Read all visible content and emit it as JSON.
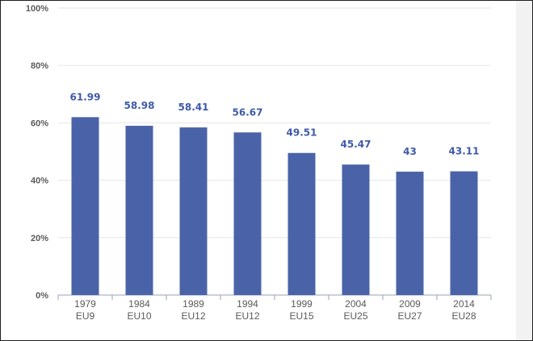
{
  "chart_data": {
    "type": "bar",
    "categories": [
      "1979",
      "1984",
      "1989",
      "1994",
      "1999",
      "2004",
      "2009",
      "2014"
    ],
    "category_sublabels": [
      "EU9",
      "EU10",
      "EU12",
      "EU12",
      "EU15",
      "EU25",
      "EU27",
      "EU28"
    ],
    "values": [
      61.99,
      58.98,
      58.41,
      56.67,
      49.51,
      45.47,
      43,
      43.11
    ],
    "data_labels": [
      "61.99",
      "58.98",
      "58.41",
      "56.67",
      "49.51",
      "45.47",
      "43",
      "43.11"
    ],
    "yticks": [
      "0%",
      "20%",
      "40%",
      "60%",
      "80%",
      "100%"
    ],
    "ytick_values": [
      0,
      20,
      40,
      60,
      80,
      100
    ],
    "title": "",
    "xlabel": "",
    "ylabel": "",
    "ylim": [
      0,
      100
    ],
    "grid": true,
    "legend": "none",
    "colors": {
      "bar": "#4a63a8",
      "label": "#3f5aa8",
      "grid": "#e6e6e6",
      "axis": "#9aa3b5",
      "text": "#5a5a5a"
    }
  }
}
